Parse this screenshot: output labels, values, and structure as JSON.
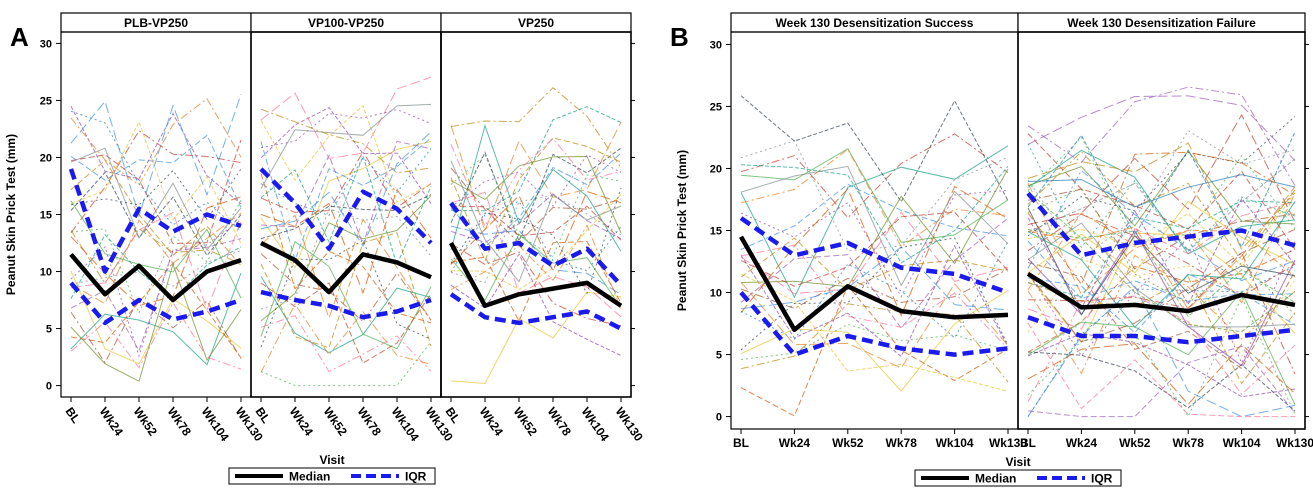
{
  "chart_data": [
    {
      "type": "line",
      "panel_letter": "A",
      "ylabel": "Peanut Skin Prick Test (mm)",
      "xlabel": "Visit",
      "ylim": [
        -1,
        31
      ],
      "yticks": [
        "0",
        "5",
        "10",
        "15",
        "20",
        "25",
        "30"
      ],
      "categories": [
        "BL",
        "Wk24",
        "Wk52",
        "Wk78",
        "Wk104",
        "Wk130"
      ],
      "legend": {
        "median_label": "Median",
        "iqr_label": "IQR",
        "placement": "bottom-center"
      },
      "facets": [
        {
          "title": "PLB-VP250",
          "median": [
            11.5,
            8.0,
            10.5,
            7.5,
            10.0,
            11.0
          ],
          "q1": [
            9.0,
            5.5,
            7.5,
            5.8,
            6.5,
            7.5
          ],
          "q3": [
            19.0,
            10.0,
            15.5,
            13.5,
            15.0,
            14.0
          ]
        },
        {
          "title": "VP100-VP250",
          "median": [
            12.5,
            11.0,
            8.2,
            11.5,
            10.8,
            9.5
          ],
          "q1": [
            8.2,
            7.5,
            7.0,
            6.0,
            6.5,
            7.5
          ],
          "q3": [
            19.0,
            16.0,
            12.0,
            17.0,
            15.5,
            12.5
          ]
        },
        {
          "title": "VP250",
          "median": [
            12.5,
            7.0,
            8.0,
            8.5,
            9.0,
            7.0
          ],
          "q1": [
            8.0,
            6.0,
            5.5,
            6.0,
            6.5,
            5.0
          ],
          "q3": [
            16.0,
            12.0,
            12.5,
            10.5,
            12.0,
            8.8
          ]
        }
      ]
    },
    {
      "type": "line",
      "panel_letter": "B",
      "ylabel": "Peanut Skin Prick Test (mm)",
      "xlabel": "Visit",
      "ylim": [
        -1,
        31
      ],
      "yticks": [
        "0",
        "5",
        "10",
        "15",
        "20",
        "25",
        "30"
      ],
      "categories": [
        "BL",
        "Wk24",
        "Wk52",
        "Wk78",
        "Wk104",
        "Wk130"
      ],
      "legend": {
        "median_label": "Median",
        "iqr_label": "IQR",
        "placement": "bottom-center"
      },
      "facets": [
        {
          "title": "Week 130 Desensitization Success",
          "median": [
            14.5,
            7.0,
            10.5,
            8.5,
            8.0,
            8.2
          ],
          "q1": [
            10.0,
            5.0,
            6.5,
            5.5,
            5.0,
            5.5
          ],
          "q3": [
            16.0,
            13.0,
            14.0,
            12.0,
            11.5,
            10.0
          ]
        },
        {
          "title": "Week 130 Desensitization Failure",
          "median": [
            11.5,
            8.8,
            9.0,
            8.5,
            9.8,
            9.0
          ],
          "q1": [
            8.0,
            6.5,
            6.5,
            6.0,
            6.5,
            7.0
          ],
          "q3": [
            18.0,
            13.0,
            14.0,
            14.5,
            15.0,
            13.8
          ]
        }
      ]
    }
  ]
}
